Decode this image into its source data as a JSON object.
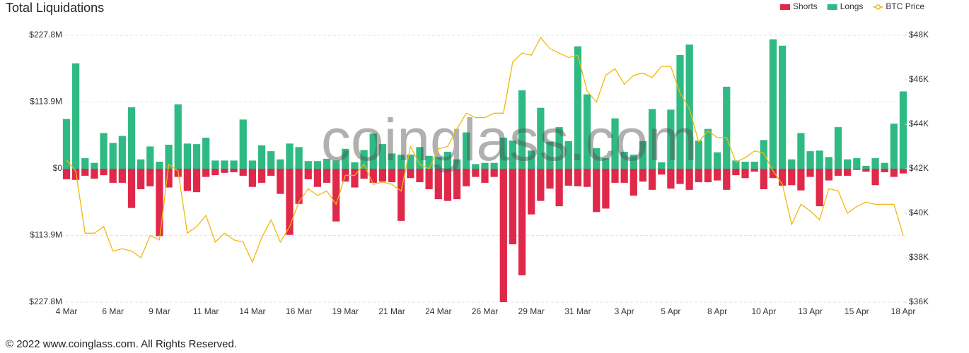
{
  "chart_data": {
    "type": "bar",
    "title": "Total Liquidations",
    "watermark": "coinglass.com",
    "footer": "© 2022 www.coinglass.com. All Rights Reserved.",
    "legend": "top-right",
    "grid": true,
    "categories": [
      "4 Mar",
      null,
      null,
      null,
      null,
      "6 Mar",
      null,
      null,
      null,
      null,
      "9 Mar",
      null,
      null,
      null,
      null,
      "11 Mar",
      null,
      null,
      null,
      null,
      "14 Mar",
      null,
      null,
      null,
      null,
      "16 Mar",
      null,
      null,
      null,
      null,
      "19 Mar",
      null,
      null,
      null,
      null,
      "21 Mar",
      null,
      null,
      null,
      null,
      "24 Mar",
      null,
      null,
      null,
      null,
      "26 Mar",
      null,
      null,
      null,
      null,
      "29 Mar",
      null,
      null,
      null,
      null,
      "31 Mar",
      null,
      null,
      null,
      null,
      "3 Apr",
      null,
      null,
      null,
      null,
      "5 Apr",
      null,
      null,
      null,
      null,
      "8 Apr",
      null,
      null,
      null,
      null,
      "10 Apr",
      null,
      null,
      null,
      null,
      "13 Apr",
      null,
      null,
      null,
      null,
      "15 Apr",
      null,
      null,
      null,
      null,
      "18 Apr"
    ],
    "ylim": [
      -227.8,
      227.8
    ],
    "yticks": [
      {
        "value": -227.8,
        "label": "$227.8M"
      },
      {
        "value": -113.9,
        "label": "$113.9M"
      },
      {
        "value": 0,
        "label": "$0"
      },
      {
        "value": 113.9,
        "label": "$113.9M"
      },
      {
        "value": 227.8,
        "label": "$227.8M"
      }
    ],
    "y2lim": [
      36,
      48
    ],
    "y2ticks": [
      {
        "value": 36,
        "label": "$36K"
      },
      {
        "value": 38,
        "label": "$38K"
      },
      {
        "value": 40,
        "label": "$40K"
      },
      {
        "value": 42,
        "label": "$42K"
      },
      {
        "value": 44,
        "label": "$44K"
      },
      {
        "value": 46,
        "label": "$46K"
      },
      {
        "value": 48,
        "label": "$48K"
      }
    ],
    "series": [
      {
        "name": "Shorts",
        "color": "#e0294a",
        "type": "bar",
        "values": [
          -18,
          -19,
          -12,
          -17,
          -11,
          -24,
          -24,
          -67,
          -35,
          -30,
          -115,
          -32,
          -14,
          -38,
          -40,
          -14,
          -11,
          -7,
          -6,
          -12,
          -31,
          -24,
          -12,
          -43,
          -113,
          -60,
          -18,
          -31,
          -24,
          -90,
          -22,
          -32,
          -17,
          -24,
          -22,
          -23,
          -89,
          -16,
          -23,
          -35,
          -52,
          -55,
          -52,
          -30,
          -14,
          -24,
          -14,
          -227.8,
          -129,
          -182,
          -78,
          -55,
          -34,
          -64,
          -29,
          -30,
          -31,
          -74,
          -68,
          -24,
          -24,
          -46,
          -22,
          -36,
          -10,
          -34,
          -26,
          -36,
          -23,
          -23,
          -20,
          -36,
          -11,
          -16,
          -5,
          -35,
          -16,
          -29,
          -28,
          -37,
          -14,
          -64,
          -20,
          -12,
          -12,
          -2,
          -5,
          -28,
          -6,
          -14,
          -8
        ]
      },
      {
        "name": "Longs",
        "color": "#2fba84",
        "type": "bar",
        "values": [
          85,
          180,
          18,
          10,
          61,
          44,
          56,
          105,
          16,
          38,
          12,
          41,
          110,
          43,
          42,
          53,
          14,
          14,
          14,
          84,
          14,
          40,
          30,
          16,
          43,
          37,
          13,
          13,
          17,
          14,
          34,
          11,
          32,
          60,
          42,
          26,
          24,
          24,
          37,
          22,
          20,
          29,
          16,
          62,
          8,
          10,
          10,
          53,
          48,
          134,
          31,
          104,
          46,
          71,
          47,
          209,
          127,
          35,
          18,
          86,
          29,
          24,
          47,
          102,
          11,
          101,
          194,
          212,
          48,
          68,
          28,
          140,
          14,
          12,
          12,
          49,
          221,
          210,
          16,
          61,
          30,
          31,
          20,
          71,
          16,
          18,
          5,
          18,
          10,
          77,
          132
        ]
      },
      {
        "name": "BTC Price",
        "color": "#f0b90b",
        "type": "line",
        "axis": "y2",
        "values": [
          42.4,
          41.9,
          39.1,
          39.1,
          39.4,
          38.3,
          38.4,
          38.3,
          38.0,
          39.0,
          38.8,
          42.2,
          41.9,
          39.1,
          39.4,
          39.9,
          38.7,
          39.1,
          38.8,
          38.7,
          37.8,
          38.9,
          39.7,
          38.7,
          39.4,
          40.5,
          41.1,
          40.8,
          41.0,
          40.4,
          41.7,
          41.7,
          42.2,
          41.3,
          41.4,
          41.3,
          41.0,
          43.0,
          42.2,
          42.0,
          42.9,
          43.0,
          43.8,
          44.5,
          44.3,
          44.3,
          44.5,
          44.5,
          46.8,
          47.2,
          47.1,
          47.9,
          47.4,
          47.2,
          47.0,
          47.1,
          45.5,
          45.0,
          46.2,
          46.5,
          45.8,
          46.2,
          46.3,
          46.1,
          46.6,
          46.6,
          45.4,
          44.7,
          43.2,
          43.7,
          43.4,
          43.4,
          42.3,
          42.5,
          42.8,
          42.7,
          41.9,
          41.3,
          39.5,
          40.4,
          40.1,
          39.7,
          41.1,
          41.0,
          40.0,
          40.3,
          40.5,
          40.4,
          40.4,
          40.4,
          39.0
        ]
      }
    ]
  }
}
